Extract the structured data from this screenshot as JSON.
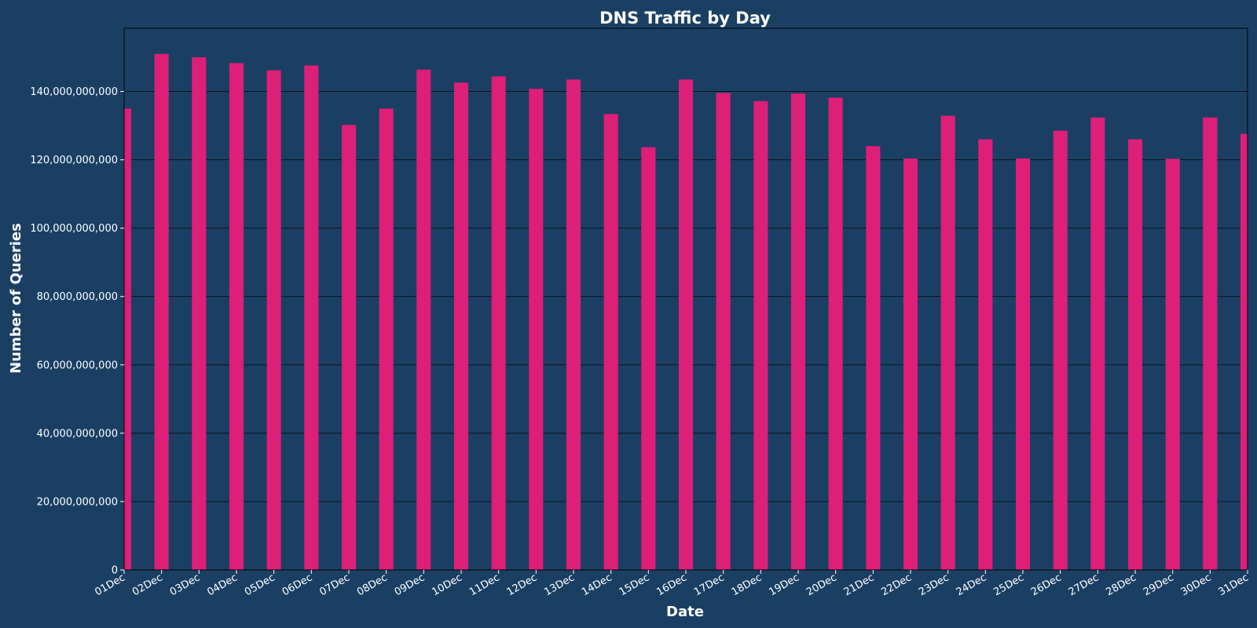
{
  "colors": {
    "background": "#1b3f63",
    "bar": "#dd1f78",
    "text": "#ffffff",
    "grid": "#000000"
  },
  "chart_data": {
    "type": "bar",
    "title": "DNS Traffic by Day",
    "xlabel": "Date",
    "ylabel": "Number of Queries",
    "categories": [
      "01Dec",
      "02Dec",
      "03Dec",
      "04Dec",
      "05Dec",
      "06Dec",
      "07Dec",
      "08Dec",
      "09Dec",
      "10Dec",
      "11Dec",
      "12Dec",
      "13Dec",
      "14Dec",
      "15Dec",
      "16Dec",
      "17Dec",
      "18Dec",
      "19Dec",
      "20Dec",
      "21Dec",
      "22Dec",
      "23Dec",
      "24Dec",
      "25Dec",
      "26Dec",
      "27Dec",
      "28Dec",
      "29Dec",
      "30Dec",
      "31Dec"
    ],
    "values": [
      135000000000,
      151000000000,
      150000000000,
      148300000000,
      146200000000,
      147600000000,
      130200000000,
      135000000000,
      146400000000,
      142600000000,
      144400000000,
      140800000000,
      143500000000,
      133400000000,
      123700000000,
      143500000000,
      139600000000,
      137200000000,
      139400000000,
      138200000000,
      124000000000,
      120400000000,
      132900000000,
      126000000000,
      120400000000,
      128500000000,
      132400000000,
      126000000000,
      120300000000,
      132400000000,
      127600000000
    ],
    "ylim": [
      0,
      158500000000
    ],
    "yticks": [
      0,
      20000000000,
      40000000000,
      60000000000,
      80000000000,
      100000000000,
      120000000000,
      140000000000
    ],
    "ytick_labels": [
      "0",
      "20,000,000,000",
      "40,000,000,000",
      "60,000,000,000",
      "80,000,000,000",
      "100,000,000,000",
      "120,000,000,000",
      "140,000,000,000"
    ],
    "grid": true,
    "grid_axis": "y"
  }
}
